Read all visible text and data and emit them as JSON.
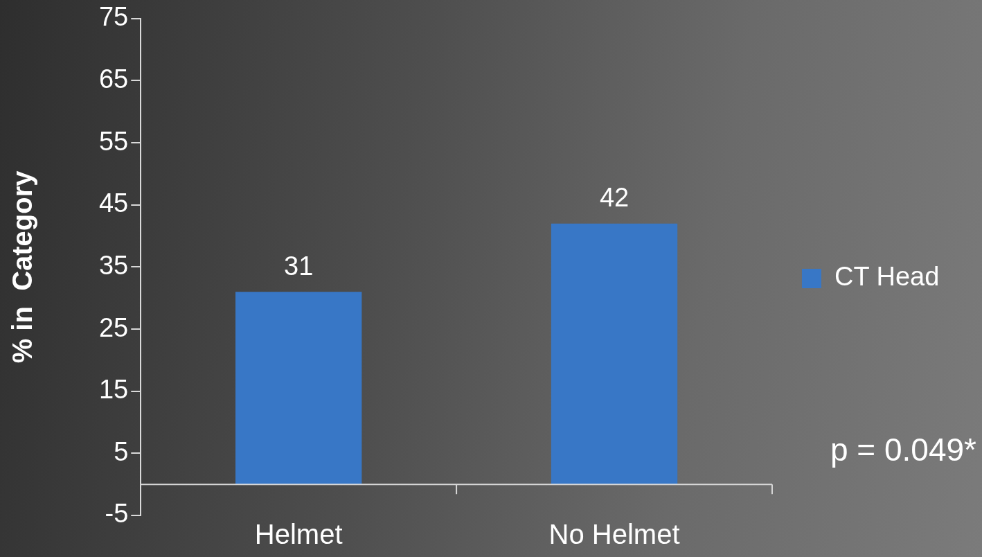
{
  "chart_data": {
    "type": "bar",
    "ylabel": "% in  Category",
    "categories": [
      "Helmet",
      "No Helmet"
    ],
    "series": [
      {
        "name": "CT Head",
        "color": "#3877c6",
        "values": [
          31,
          42
        ]
      }
    ],
    "ylim": [
      -5,
      75
    ],
    "yticks": [
      -5,
      5,
      15,
      25,
      35,
      45,
      55,
      65,
      75
    ],
    "data_labels": true,
    "legend": "right",
    "annotations": [
      "p = 0.049*"
    ]
  }
}
